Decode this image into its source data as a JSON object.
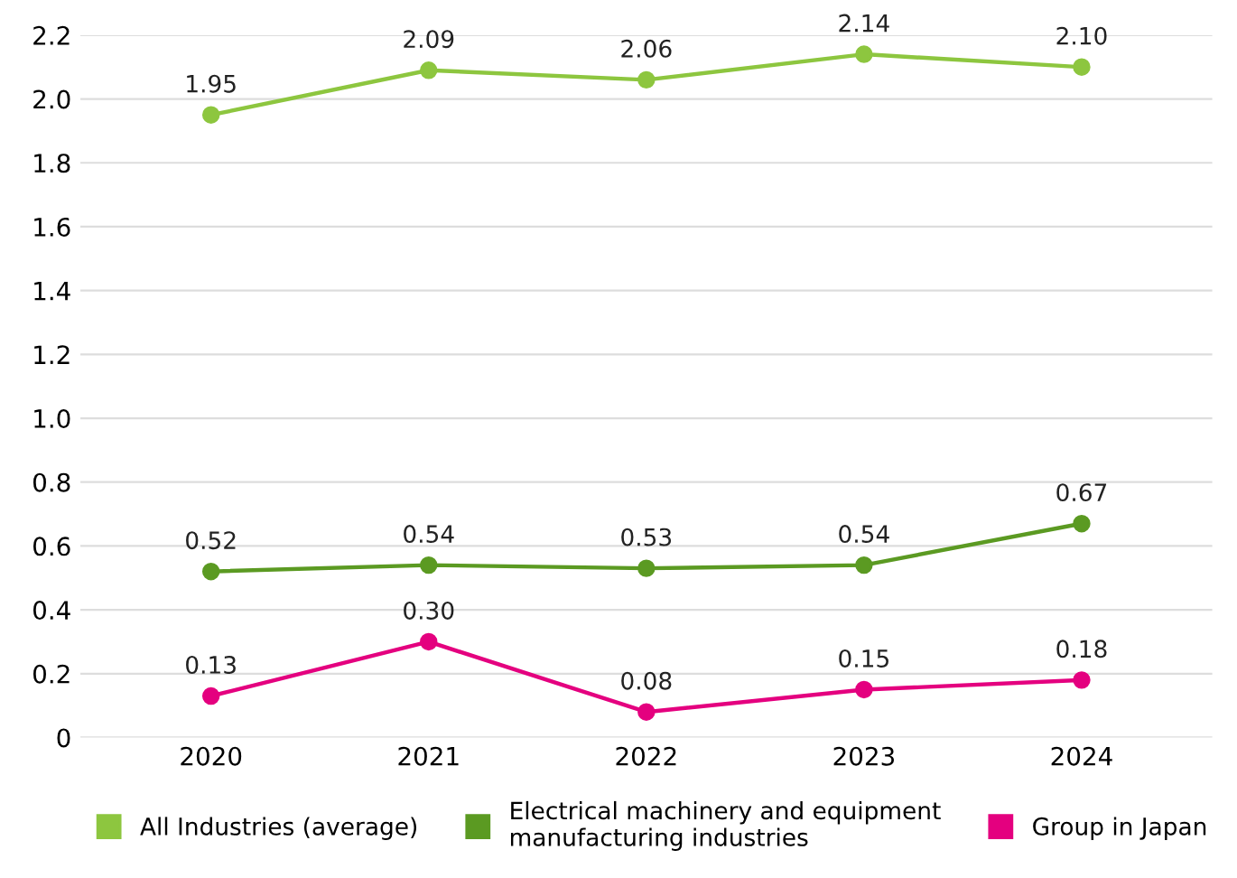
{
  "chart_data": {
    "type": "line",
    "categories": [
      "2020",
      "2021",
      "2022",
      "2023",
      "2024"
    ],
    "series": [
      {
        "name": "All Industries (average)",
        "color": "#8dc63f",
        "values": [
          1.95,
          2.09,
          2.06,
          2.14,
          2.1
        ],
        "value_labels": [
          "1.95",
          "2.09",
          "2.06",
          "2.14",
          "2.10"
        ]
      },
      {
        "name": "Electrical machinery and equipment\nmanufacturing industries",
        "color": "#5b9a22",
        "values": [
          0.52,
          0.54,
          0.53,
          0.54,
          0.67
        ],
        "value_labels": [
          "0.52",
          "0.54",
          "0.53",
          "0.54",
          "0.67"
        ]
      },
      {
        "name": "Group in Japan",
        "color": "#e4007f",
        "values": [
          0.13,
          0.3,
          0.08,
          0.15,
          0.18
        ],
        "value_labels": [
          "0.13",
          "0.30",
          "0.08",
          "0.15",
          "0.18"
        ]
      }
    ],
    "ylim": [
      0,
      2.2
    ],
    "yticks": [
      0,
      0.2,
      0.4,
      0.6,
      0.8,
      {
        "value": 1.0,
        "label": "1.0"
      },
      1.2,
      1.4,
      1.6,
      1.8,
      {
        "value": 2.0,
        "label": "2.0"
      },
      2.2
    ],
    "grid": "y",
    "legend": "bottom",
    "marker": "circle",
    "line_style": "solid"
  }
}
